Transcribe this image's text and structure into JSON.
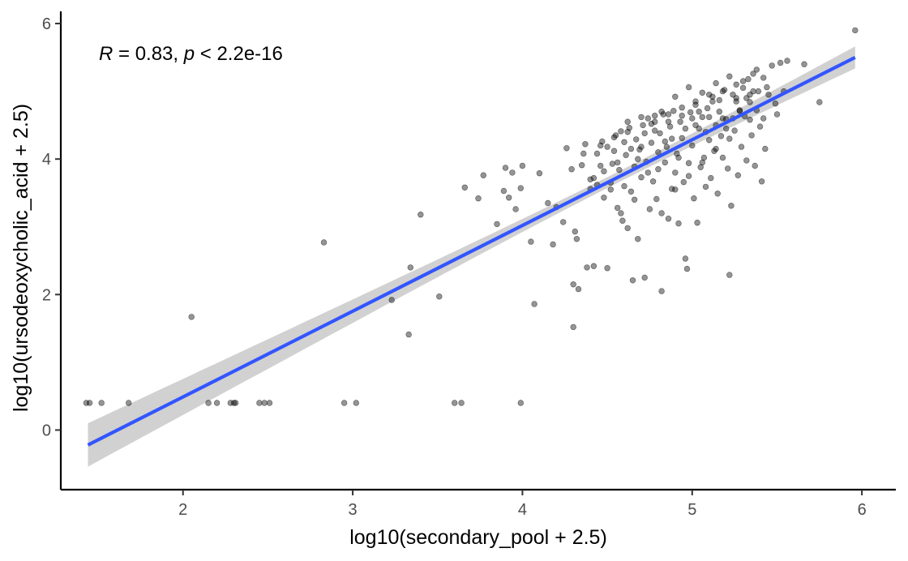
{
  "chart_data": {
    "type": "scatter",
    "xlabel": "log10(secondary_pool + 2.5)",
    "ylabel": "log10(ursodeoxycholic_acid + 2.5)",
    "xlim": [
      1.28,
      6.2
    ],
    "ylim": [
      -0.88,
      6.18
    ],
    "x_ticks": [
      2,
      3,
      4,
      5,
      6
    ],
    "y_ticks": [
      0,
      2,
      4,
      6
    ],
    "annotation": {
      "r_symbol": "R",
      "r_text": " = 0.83, ",
      "p_symbol": "p",
      "p_text": " < 2.2e-16"
    },
    "regression": {
      "x": [
        1.44,
        5.96
      ],
      "y": [
        -0.22,
        5.5
      ],
      "ci_halfwidth_ends": 0.32,
      "ci_halfwidth_center": 0.08,
      "x_center": 4.54
    },
    "colors": {
      "points": "#000000",
      "line": "#3355ff",
      "band": "#cccccc",
      "axis": "#000000"
    },
    "points": [
      [
        1.43,
        0.4
      ],
      [
        1.45,
        0.4
      ],
      [
        1.52,
        0.4
      ],
      [
        1.68,
        0.4
      ],
      [
        2.05,
        1.67
      ],
      [
        2.15,
        0.4
      ],
      [
        2.2,
        0.4
      ],
      [
        2.28,
        0.4
      ],
      [
        2.3,
        0.4
      ],
      [
        2.31,
        0.4
      ],
      [
        2.45,
        0.4
      ],
      [
        2.48,
        0.4
      ],
      [
        2.51,
        0.4
      ],
      [
        2.83,
        2.77
      ],
      [
        2.95,
        0.4
      ],
      [
        3.02,
        0.4
      ],
      [
        3.23,
        1.92
      ],
      [
        3.33,
        1.41
      ],
      [
        3.34,
        2.4
      ],
      [
        3.4,
        3.18
      ],
      [
        3.51,
        1.97
      ],
      [
        3.6,
        0.4
      ],
      [
        3.64,
        0.4
      ],
      [
        3.66,
        3.58
      ],
      [
        3.74,
        3.42
      ],
      [
        3.77,
        3.76
      ],
      [
        3.85,
        3.04
      ],
      [
        3.89,
        3.53
      ],
      [
        3.9,
        3.87
      ],
      [
        3.92,
        3.43
      ],
      [
        3.94,
        3.8
      ],
      [
        3.96,
        3.26
      ],
      [
        3.99,
        3.57
      ],
      [
        4.0,
        3.9
      ],
      [
        3.99,
        0.4
      ],
      [
        4.05,
        2.78
      ],
      [
        4.07,
        1.86
      ],
      [
        4.1,
        3.79
      ],
      [
        4.15,
        3.35
      ],
      [
        4.18,
        2.74
      ],
      [
        4.2,
        3.29
      ],
      [
        4.24,
        3.07
      ],
      [
        4.26,
        4.16
      ],
      [
        4.29,
        3.85
      ],
      [
        4.3,
        1.52
      ],
      [
        4.3,
        2.15
      ],
      [
        4.31,
        2.93
      ],
      [
        4.32,
        2.82
      ],
      [
        4.33,
        2.08
      ],
      [
        4.35,
        3.91
      ],
      [
        4.37,
        4.22
      ],
      [
        4.38,
        2.4
      ],
      [
        4.4,
        3.56
      ],
      [
        4.42,
        3.72
      ],
      [
        4.42,
        2.42
      ],
      [
        4.44,
        4.08
      ],
      [
        4.46,
        3.9
      ],
      [
        4.47,
        4.26
      ],
      [
        4.48,
        3.43
      ],
      [
        4.5,
        2.39
      ],
      [
        4.5,
        4.18
      ],
      [
        4.52,
        3.65
      ],
      [
        4.53,
        3.93
      ],
      [
        4.54,
        4.12
      ],
      [
        4.55,
        4.35
      ],
      [
        4.56,
        3.28
      ],
      [
        4.57,
        3.84
      ],
      [
        4.58,
        4.41
      ],
      [
        4.59,
        3.09
      ],
      [
        4.6,
        3.6
      ],
      [
        4.61,
        4.06
      ],
      [
        4.62,
        2.98
      ],
      [
        4.63,
        4.46
      ],
      [
        4.64,
        3.52
      ],
      [
        4.65,
        2.21
      ],
      [
        4.66,
        3.89
      ],
      [
        4.67,
        4.29
      ],
      [
        4.68,
        2.82
      ],
      [
        4.69,
        4.14
      ],
      [
        4.7,
        3.73
      ],
      [
        4.71,
        4.5
      ],
      [
        4.72,
        2.25
      ],
      [
        4.73,
        3.96
      ],
      [
        4.74,
        4.6
      ],
      [
        4.75,
        3.26
      ],
      [
        4.76,
        4.24
      ],
      [
        4.77,
        3.67
      ],
      [
        4.78,
        4.55
      ],
      [
        4.79,
        3.41
      ],
      [
        4.8,
        3.85
      ],
      [
        4.81,
        4.38
      ],
      [
        4.82,
        2.05
      ],
      [
        4.83,
        4.66
      ],
      [
        4.84,
        3.95
      ],
      [
        4.85,
        4.18
      ],
      [
        4.86,
        3.12
      ],
      [
        4.87,
        4.48
      ],
      [
        4.88,
        3.56
      ],
      [
        4.89,
        4.71
      ],
      [
        4.9,
        3.8
      ],
      [
        4.91,
        4.08
      ],
      [
        4.92,
        3.05
      ],
      [
        4.93,
        4.55
      ],
      [
        4.94,
        4.31
      ],
      [
        4.95,
        3.66
      ],
      [
        4.96,
        2.53
      ],
      [
        4.97,
        2.38
      ],
      [
        4.98,
        3.94
      ],
      [
        4.99,
        4.69
      ],
      [
        5.0,
        4.2
      ],
      [
        5.01,
        3.42
      ],
      [
        5.02,
        4.85
      ],
      [
        5.03,
        3.06
      ],
      [
        5.04,
        4.45
      ],
      [
        5.05,
        3.88
      ],
      [
        5.06,
        4.62
      ],
      [
        5.07,
        4.02
      ],
      [
        5.08,
        3.59
      ],
      [
        5.09,
        4.75
      ],
      [
        5.1,
        4.28
      ],
      [
        5.11,
        3.72
      ],
      [
        5.12,
        4.92
      ],
      [
        5.13,
        4.12
      ],
      [
        5.14,
        4.5
      ],
      [
        5.15,
        3.49
      ],
      [
        5.16,
        4.87
      ],
      [
        5.17,
        4.34
      ],
      [
        5.18,
        4.02
      ],
      [
        5.19,
        5.02
      ],
      [
        5.2,
        4.59
      ],
      [
        5.21,
        3.86
      ],
      [
        5.22,
        2.29
      ],
      [
        5.23,
        3.31
      ],
      [
        5.24,
        4.95
      ],
      [
        5.25,
        4.42
      ],
      [
        5.26,
        5.1
      ],
      [
        5.27,
        3.76
      ],
      [
        5.28,
        4.71
      ],
      [
        5.29,
        4.18
      ],
      [
        5.3,
        5.05
      ],
      [
        5.31,
        4.63
      ],
      [
        5.32,
        3.98
      ],
      [
        5.33,
        5.18
      ],
      [
        5.34,
        4.84
      ],
      [
        5.35,
        4.35
      ],
      [
        5.36,
        5.26
      ],
      [
        5.37,
        3.9
      ],
      [
        5.38,
        4.72
      ],
      [
        5.39,
        5.0
      ],
      [
        5.4,
        4.48
      ],
      [
        5.41,
        3.67
      ],
      [
        5.42,
        5.2
      ],
      [
        5.43,
        4.15
      ],
      [
        5.45,
        4.95
      ],
      [
        5.47,
        5.38
      ],
      [
        5.49,
        4.82
      ],
      [
        5.52,
        5.42
      ],
      [
        5.54,
        5.0
      ],
      [
        5.56,
        5.45
      ],
      [
        5.5,
        4.66
      ],
      [
        5.66,
        5.4
      ],
      [
        5.75,
        4.84
      ],
      [
        5.96,
        5.9
      ],
      [
        4.52,
        3.55
      ],
      [
        4.6,
        4.25
      ],
      [
        4.68,
        4.0
      ],
      [
        4.76,
        4.52
      ],
      [
        4.84,
        4.26
      ],
      [
        4.92,
        4.02
      ],
      [
        5.0,
        4.6
      ],
      [
        5.08,
        4.4
      ],
      [
        5.16,
        4.7
      ],
      [
        5.24,
        4.6
      ],
      [
        5.32,
        4.9
      ],
      [
        4.44,
        3.62
      ],
      [
        4.48,
        3.82
      ],
      [
        4.56,
        3.95
      ],
      [
        4.64,
        4.15
      ],
      [
        4.72,
        4.38
      ],
      [
        4.8,
        4.1
      ],
      [
        4.88,
        4.3
      ],
      [
        4.96,
        4.45
      ],
      [
        5.04,
        4.7
      ],
      [
        5.12,
        4.85
      ],
      [
        5.2,
        4.45
      ],
      [
        5.28,
        4.72
      ],
      [
        5.36,
        5.0
      ],
      [
        4.58,
        3.2
      ],
      [
        4.66,
        3.4
      ],
      [
        4.74,
        3.8
      ],
      [
        4.82,
        3.2
      ],
      [
        4.9,
        3.55
      ],
      [
        4.98,
        3.75
      ],
      [
        5.06,
        3.95
      ],
      [
        5.14,
        4.15
      ],
      [
        5.22,
        4.3
      ],
      [
        4.62,
        4.55
      ],
      [
        4.7,
        4.62
      ],
      [
        4.78,
        4.42
      ],
      [
        4.86,
        4.66
      ],
      [
        4.94,
        4.76
      ],
      [
        5.02,
        4.8
      ],
      [
        5.1,
        4.62
      ],
      [
        5.18,
        5.0
      ],
      [
        5.26,
        4.85
      ],
      [
        5.34,
        4.58
      ],
      [
        4.36,
        4.08
      ],
      [
        4.4,
        3.7
      ],
      [
        4.46,
        4.2
      ],
      [
        4.54,
        4.32
      ],
      [
        4.62,
        4.4
      ],
      [
        4.7,
        4.18
      ],
      [
        4.78,
        4.64
      ],
      [
        4.86,
        4.55
      ],
      [
        4.94,
        4.64
      ],
      [
        5.02,
        4.5
      ],
      [
        5.1,
        4.95
      ],
      [
        5.18,
        4.6
      ],
      [
        5.26,
        4.9
      ],
      [
        5.34,
        4.95
      ],
      [
        5.42,
        4.6
      ],
      [
        5.44,
        5.06
      ],
      [
        5.38,
        5.32
      ],
      [
        5.3,
        5.15
      ],
      [
        5.22,
        5.22
      ],
      [
        5.14,
        5.12
      ],
      [
        5.06,
        4.98
      ],
      [
        4.98,
        5.06
      ],
      [
        4.9,
        4.92
      ],
      [
        4.82,
        4.7
      ]
    ]
  }
}
